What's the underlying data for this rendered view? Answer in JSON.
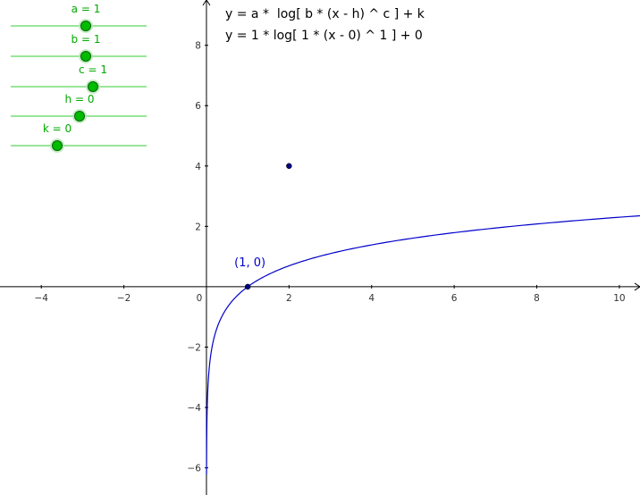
{
  "formula": {
    "general": "y = a *  log[ b * (x - h) ^ c ] + k",
    "specific": "y = 1 * log[ 1 * (x - 0) ^ 1 ] + 0"
  },
  "sliders": [
    {
      "label": "a = 1",
      "value": 1
    },
    {
      "label": "b = 1",
      "value": 1
    },
    {
      "label": "c = 1",
      "value": 1
    },
    {
      "label": "h = 0",
      "value": 0
    },
    {
      "label": "k = 0",
      "value": 0
    }
  ],
  "colors": {
    "curve": "#0000cc",
    "point": "#000080",
    "slider_line": "#99e699",
    "slider_knob": "#00bb00",
    "slider_text": "#00aa00"
  },
  "chart_data": {
    "type": "line",
    "xlim": [
      -5,
      10.5
    ],
    "ylim": [
      -6.9,
      9.5
    ],
    "xticks": [
      -4,
      -2,
      0,
      2,
      4,
      6,
      8,
      10
    ],
    "yticks": [
      -6,
      -4,
      -2,
      2,
      4,
      6,
      8
    ],
    "xtick_labels": [
      "−4",
      "−2",
      "0",
      "2",
      "4",
      "6",
      "8",
      "10"
    ],
    "ytick_labels": [
      "−6",
      "−4",
      "−2",
      "2",
      "4",
      "6",
      "8"
    ],
    "grid": false,
    "series": [
      {
        "function": "log(x)",
        "x_domain": [
          0.002,
          10.5
        ]
      }
    ],
    "points": [
      {
        "x": 1,
        "y": 0,
        "label": "(1, 0)"
      },
      {
        "x": 2,
        "y": 4,
        "label": ""
      }
    ]
  }
}
